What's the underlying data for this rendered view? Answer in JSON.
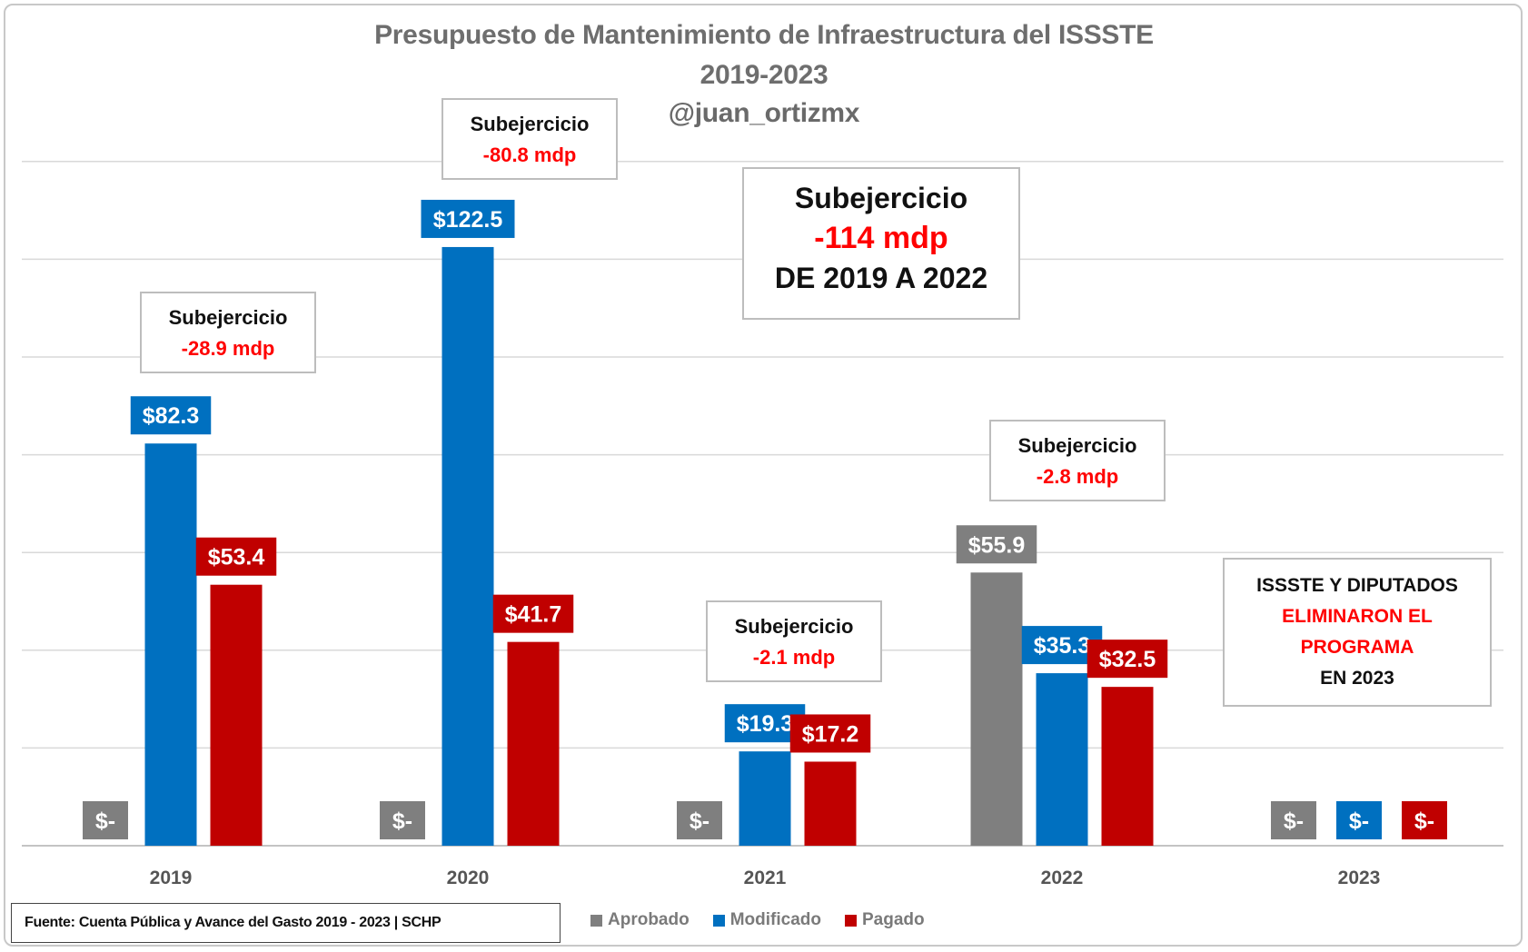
{
  "title": {
    "line1": "Presupuesto de Mantenimiento de Infraestructura del ISSSTE",
    "line2": "2019-2023",
    "line3": "@juan_ortizmx"
  },
  "colors": {
    "aprobado": "#7f7f7f",
    "modificado": "#0070c0",
    "pagado": "#c00000",
    "title": "#6e6e6e",
    "highlight": "#ff0000"
  },
  "chart_data": {
    "type": "bar",
    "categories": [
      "2019",
      "2020",
      "2021",
      "2022",
      "2023"
    ],
    "series": [
      {
        "name": "Aprobado",
        "values": [
          0,
          0,
          0,
          55.9,
          0
        ],
        "labels": [
          "$-",
          "$-",
          "$-",
          "$55.9",
          "$-"
        ]
      },
      {
        "name": "Modificado",
        "values": [
          82.3,
          122.5,
          19.3,
          35.3,
          0
        ],
        "labels": [
          "$82.3",
          "$122.5",
          "$19.3",
          "$35.3",
          "$-"
        ]
      },
      {
        "name": "Pagado",
        "values": [
          53.4,
          41.7,
          17.2,
          32.5,
          0
        ],
        "labels": [
          "$53.4",
          "$41.7",
          "$17.2",
          "$32.5",
          "$-"
        ]
      }
    ],
    "ylim": [
      0,
      140
    ],
    "grid": true,
    "legend": "bottom",
    "xlabel": "",
    "ylabel": ""
  },
  "annotations": {
    "y2019": {
      "label": "Subejercicio",
      "value": "-28.9 mdp"
    },
    "y2020": {
      "label": "Subejercicio",
      "value": "-80.8 mdp"
    },
    "y2021": {
      "label": "Subejercicio",
      "value": "-2.1 mdp"
    },
    "y2022": {
      "label": "Subejercicio",
      "value": "-2.8 mdp"
    },
    "total": {
      "label": "Subejercicio",
      "value": "-114 mdp",
      "period": "DE 2019 A 2022"
    },
    "y2023": {
      "line1": "ISSSTE Y DIPUTADOS",
      "line2": "ELIMINARON EL",
      "line3": "PROGRAMA",
      "line4": "EN 2023"
    }
  },
  "legend": {
    "items": [
      "Aprobado",
      "Modificado",
      "Pagado"
    ]
  },
  "source": "Fuente: Cuenta Pública y Avance del Gasto 2019 - 2023 | SCHP"
}
